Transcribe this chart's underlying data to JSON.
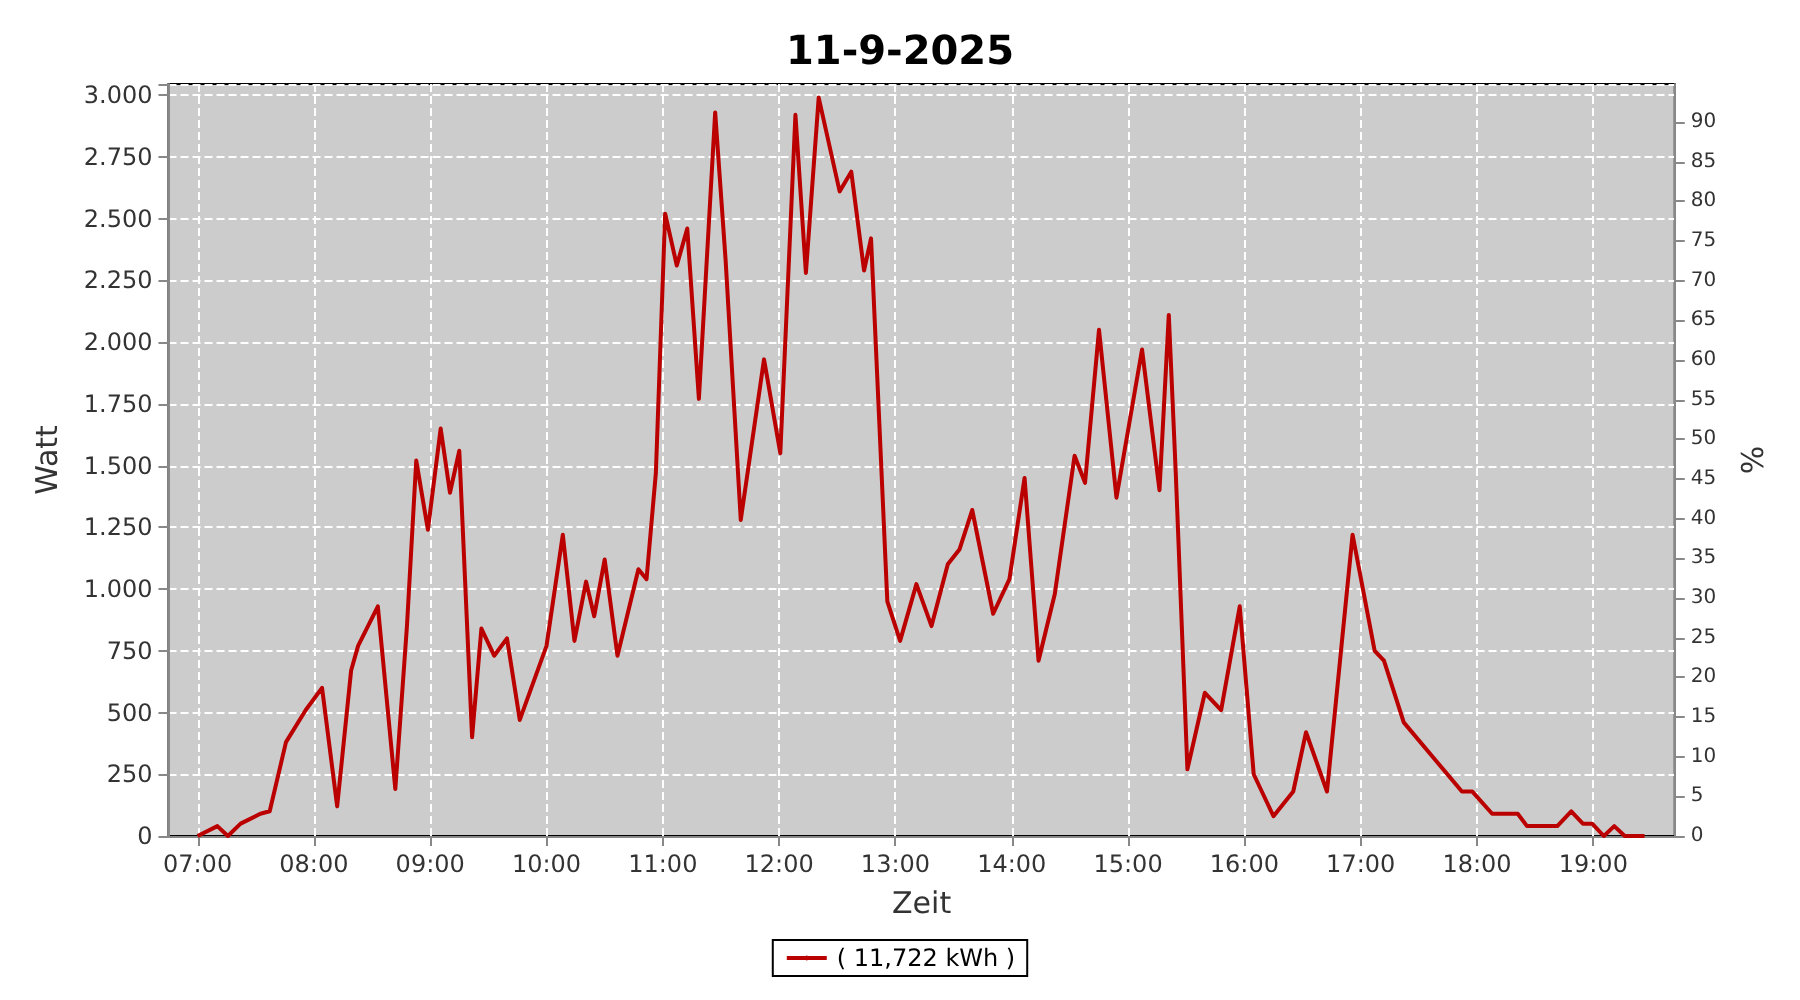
{
  "chart_data": {
    "type": "line",
    "title": "11-9-2025",
    "xlabel": "Zeit",
    "ylabel": "Watt",
    "y2label": "%",
    "series": [
      {
        "name": "( 11,722 kWh )",
        "color": "#bb0000",
        "x": [
          7.0,
          7.17,
          7.26,
          7.37,
          7.54,
          7.62,
          7.76,
          7.93,
          8.07,
          8.2,
          8.32,
          8.38,
          8.55,
          8.7,
          8.8,
          8.88,
          8.98,
          9.09,
          9.17,
          9.25,
          9.36,
          9.44,
          9.55,
          9.66,
          9.77,
          10.0,
          10.14,
          10.24,
          10.34,
          10.41,
          10.5,
          10.61,
          10.79,
          10.86,
          10.94,
          11.02,
          11.12,
          11.21,
          11.31,
          11.45,
          11.54,
          11.67,
          11.87,
          12.01,
          12.14,
          12.23,
          12.34,
          12.52,
          12.62,
          12.73,
          12.79,
          12.93,
          13.04,
          13.18,
          13.31,
          13.45,
          13.55,
          13.66,
          13.84,
          13.98,
          14.11,
          14.23,
          14.37,
          14.54,
          14.63,
          14.75,
          14.9,
          15.12,
          15.27,
          15.35,
          15.41,
          15.51,
          15.66,
          15.8,
          15.96,
          16.08,
          16.25,
          16.42,
          16.53,
          16.71,
          16.93,
          17.12,
          17.2,
          17.37,
          17.62,
          17.87,
          17.96,
          18.13,
          18.35,
          18.43,
          18.69,
          18.81,
          18.91,
          18.99,
          19.09,
          19.18,
          19.27,
          19.44
        ],
        "values": [
          0,
          40,
          0,
          50,
          90,
          100,
          380,
          510,
          600,
          120,
          670,
          770,
          930,
          190,
          850,
          1520,
          1240,
          1650,
          1390,
          1560,
          400,
          840,
          730,
          800,
          470,
          770,
          1220,
          790,
          1030,
          890,
          1120,
          730,
          1080,
          1040,
          1470,
          2520,
          2310,
          2460,
          1770,
          2930,
          2330,
          1280,
          1930,
          1550,
          2920,
          2280,
          2990,
          2610,
          2690,
          2290,
          2420,
          950,
          790,
          1020,
          850,
          1100,
          1160,
          1320,
          900,
          1040,
          1450,
          710,
          980,
          1540,
          1430,
          2050,
          1370,
          1970,
          1400,
          2110,
          1470,
          270,
          580,
          510,
          930,
          250,
          80,
          180,
          420,
          180,
          1220,
          750,
          710,
          460,
          320,
          180,
          180,
          90,
          90,
          40,
          40,
          100,
          50,
          50,
          0,
          40,
          0,
          0
        ]
      }
    ],
    "xlim": [
      6.75,
      19.7
    ],
    "xticks": [
      {
        "value": 7,
        "label": "07:00"
      },
      {
        "value": 8,
        "label": "08:00"
      },
      {
        "value": 9,
        "label": "09:00"
      },
      {
        "value": 10,
        "label": "10:00"
      },
      {
        "value": 11,
        "label": "11:00"
      },
      {
        "value": 12,
        "label": "12:00"
      },
      {
        "value": 13,
        "label": "13:00"
      },
      {
        "value": 14,
        "label": "14:00"
      },
      {
        "value": 15,
        "label": "15:00"
      },
      {
        "value": 16,
        "label": "16:00"
      },
      {
        "value": 17,
        "label": "17:00"
      },
      {
        "value": 18,
        "label": "18:00"
      },
      {
        "value": 19,
        "label": "19:00"
      }
    ],
    "ylim": [
      0,
      3045
    ],
    "yticks": [
      0,
      {
        "value": 250,
        "label": "250"
      },
      {
        "value": 500,
        "label": "500"
      },
      {
        "value": 750,
        "label": "750"
      },
      {
        "value": 1000,
        "label": "1.000"
      },
      {
        "value": 1250,
        "label": "1.250"
      },
      {
        "value": 1500,
        "label": "1.500"
      },
      {
        "value": 1750,
        "label": "1.750"
      },
      {
        "value": 2000,
        "label": "2.000"
      },
      {
        "value": 2250,
        "label": "2.250"
      },
      {
        "value": 2500,
        "label": "2.500"
      },
      {
        "value": 2750,
        "label": "2.750"
      },
      {
        "value": 3000,
        "label": "3.000"
      }
    ],
    "y2lim": [
      0,
      94.8
    ],
    "y2ticks": [
      0,
      5,
      10,
      15,
      20,
      25,
      30,
      35,
      40,
      45,
      50,
      55,
      60,
      65,
      70,
      75,
      80,
      85,
      90
    ],
    "grid": true,
    "legend": "bottom",
    "marker": "none",
    "line_style": "solid"
  }
}
